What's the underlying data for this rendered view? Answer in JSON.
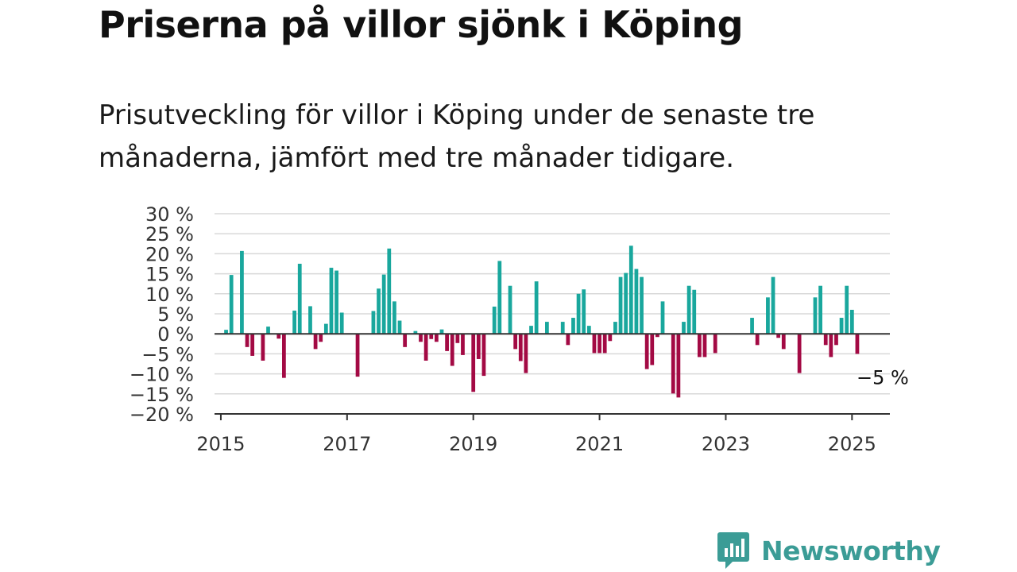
{
  "title": "Priserna på villor sjönk i Köping",
  "subtitle": "Prisutveckling för villor i Köping under de senaste tre månaderna, jämfört med tre månader tidigare.",
  "brand": {
    "name": "Newsworthy",
    "color": "#3b9c96"
  },
  "colors": {
    "positive": "#19a79d",
    "negative": "#a30a44",
    "grid": "#d8d8d8",
    "axis": "#333333"
  },
  "chart_data": {
    "type": "bar",
    "title": "Priserna på villor sjönk i Köping",
    "xlabel": "",
    "ylabel": "",
    "ylim": [
      -20,
      30
    ],
    "xlim": [
      2014.9,
      2025.6
    ],
    "x_ticks": [
      2015,
      2017,
      2019,
      2021,
      2023,
      2025
    ],
    "x_tick_labels": [
      "2015",
      "2017",
      "2019",
      "2021",
      "2023",
      "2025"
    ],
    "y_ticks": [
      30,
      25,
      20,
      15,
      10,
      5,
      0,
      -5,
      -10,
      -15,
      -20
    ],
    "y_tick_labels": [
      "30 %",
      "25 %",
      "20 %",
      "15 %",
      "10 %",
      "5 %",
      "0 %",
      "−5 %",
      "−10 %",
      "−15 %",
      "−20 %"
    ],
    "grid": true,
    "annotation": {
      "text": "−5 %",
      "x": 2025.0833,
      "y": -5
    },
    "points": [
      {
        "x": 2015.0833,
        "y": 1
      },
      {
        "x": 2015.1667,
        "y": 14.7
      },
      {
        "x": 2015.25,
        "y": 0
      },
      {
        "x": 2015.3333,
        "y": 20.7
      },
      {
        "x": 2015.4167,
        "y": -3.3
      },
      {
        "x": 2015.5,
        "y": -5.5
      },
      {
        "x": 2015.5833,
        "y": 0
      },
      {
        "x": 2015.6667,
        "y": -6.7
      },
      {
        "x": 2015.75,
        "y": 1.8
      },
      {
        "x": 2015.8333,
        "y": 0
      },
      {
        "x": 2015.9167,
        "y": -1.2
      },
      {
        "x": 2016.0,
        "y": -11
      },
      {
        "x": 2016.0833,
        "y": 0
      },
      {
        "x": 2016.1667,
        "y": 5.8
      },
      {
        "x": 2016.25,
        "y": 17.5
      },
      {
        "x": 2016.3333,
        "y": 0
      },
      {
        "x": 2016.4167,
        "y": 6.9
      },
      {
        "x": 2016.5,
        "y": -3.8
      },
      {
        "x": 2016.5833,
        "y": -2
      },
      {
        "x": 2016.6667,
        "y": 2.5
      },
      {
        "x": 2016.75,
        "y": 16.5
      },
      {
        "x": 2016.8333,
        "y": 15.8
      },
      {
        "x": 2016.9167,
        "y": 5.3
      },
      {
        "x": 2017.0,
        "y": 0
      },
      {
        "x": 2017.0833,
        "y": 0
      },
      {
        "x": 2017.1667,
        "y": -10.7
      },
      {
        "x": 2017.25,
        "y": 0
      },
      {
        "x": 2017.3333,
        "y": 0
      },
      {
        "x": 2017.4167,
        "y": 5.7
      },
      {
        "x": 2017.5,
        "y": 11.3
      },
      {
        "x": 2017.5833,
        "y": 14.8
      },
      {
        "x": 2017.6667,
        "y": 21.3
      },
      {
        "x": 2017.75,
        "y": 8.1
      },
      {
        "x": 2017.8333,
        "y": 3.3
      },
      {
        "x": 2017.9167,
        "y": -3.3
      },
      {
        "x": 2018.0,
        "y": 0
      },
      {
        "x": 2018.0833,
        "y": 0.7
      },
      {
        "x": 2018.1667,
        "y": -2
      },
      {
        "x": 2018.25,
        "y": -6.7
      },
      {
        "x": 2018.3333,
        "y": -1.3
      },
      {
        "x": 2018.4167,
        "y": -2
      },
      {
        "x": 2018.5,
        "y": 1.1
      },
      {
        "x": 2018.5833,
        "y": -4.3
      },
      {
        "x": 2018.6667,
        "y": -8
      },
      {
        "x": 2018.75,
        "y": -2.3
      },
      {
        "x": 2018.8333,
        "y": -5.3
      },
      {
        "x": 2018.9167,
        "y": 0
      },
      {
        "x": 2019.0,
        "y": -14.5
      },
      {
        "x": 2019.0833,
        "y": -6.3
      },
      {
        "x": 2019.1667,
        "y": -10.5
      },
      {
        "x": 2019.25,
        "y": 0
      },
      {
        "x": 2019.3333,
        "y": 6.8
      },
      {
        "x": 2019.4167,
        "y": 18.2
      },
      {
        "x": 2019.5,
        "y": 0
      },
      {
        "x": 2019.5833,
        "y": 12
      },
      {
        "x": 2019.6667,
        "y": -3.8
      },
      {
        "x": 2019.75,
        "y": -6.8
      },
      {
        "x": 2019.8333,
        "y": -9.8
      },
      {
        "x": 2019.9167,
        "y": 2
      },
      {
        "x": 2020.0,
        "y": 13.1
      },
      {
        "x": 2020.0833,
        "y": 0
      },
      {
        "x": 2020.1667,
        "y": 3
      },
      {
        "x": 2020.25,
        "y": 0
      },
      {
        "x": 2020.3333,
        "y": 0
      },
      {
        "x": 2020.4167,
        "y": 3
      },
      {
        "x": 2020.5,
        "y": -2.8
      },
      {
        "x": 2020.5833,
        "y": 4
      },
      {
        "x": 2020.6667,
        "y": 10
      },
      {
        "x": 2020.75,
        "y": 11.1
      },
      {
        "x": 2020.8333,
        "y": 2
      },
      {
        "x": 2020.9167,
        "y": -4.8
      },
      {
        "x": 2021.0,
        "y": -4.8
      },
      {
        "x": 2021.0833,
        "y": -4.8
      },
      {
        "x": 2021.1667,
        "y": -1.8
      },
      {
        "x": 2021.25,
        "y": 3
      },
      {
        "x": 2021.3333,
        "y": 14.2
      },
      {
        "x": 2021.4167,
        "y": 15.2
      },
      {
        "x": 2021.5,
        "y": 22
      },
      {
        "x": 2021.5833,
        "y": 16.2
      },
      {
        "x": 2021.6667,
        "y": 14.2
      },
      {
        "x": 2021.75,
        "y": -8.8
      },
      {
        "x": 2021.8333,
        "y": -7.8
      },
      {
        "x": 2021.9167,
        "y": -0.8
      },
      {
        "x": 2022.0,
        "y": 8.1
      },
      {
        "x": 2022.0833,
        "y": 0
      },
      {
        "x": 2022.1667,
        "y": -14.9
      },
      {
        "x": 2022.25,
        "y": -15.9
      },
      {
        "x": 2022.3333,
        "y": 3
      },
      {
        "x": 2022.4167,
        "y": 12
      },
      {
        "x": 2022.5,
        "y": 11
      },
      {
        "x": 2022.5833,
        "y": -5.8
      },
      {
        "x": 2022.6667,
        "y": -5.8
      },
      {
        "x": 2022.75,
        "y": 0
      },
      {
        "x": 2022.8333,
        "y": -4.8
      },
      {
        "x": 2022.9167,
        "y": 0
      },
      {
        "x": 2023.0,
        "y": 0
      },
      {
        "x": 2023.0833,
        "y": 0
      },
      {
        "x": 2023.1667,
        "y": 0
      },
      {
        "x": 2023.25,
        "y": 0
      },
      {
        "x": 2023.3333,
        "y": 0
      },
      {
        "x": 2023.4167,
        "y": 4
      },
      {
        "x": 2023.5,
        "y": -2.8
      },
      {
        "x": 2023.5833,
        "y": 0
      },
      {
        "x": 2023.6667,
        "y": 9.1
      },
      {
        "x": 2023.75,
        "y": 14.2
      },
      {
        "x": 2023.8333,
        "y": -1
      },
      {
        "x": 2023.9167,
        "y": -3.8
      },
      {
        "x": 2024.0,
        "y": 0
      },
      {
        "x": 2024.0833,
        "y": 0
      },
      {
        "x": 2024.1667,
        "y": -9.8
      },
      {
        "x": 2024.25,
        "y": 0
      },
      {
        "x": 2024.3333,
        "y": 0
      },
      {
        "x": 2024.4167,
        "y": 9.1
      },
      {
        "x": 2024.5,
        "y": 12
      },
      {
        "x": 2024.5833,
        "y": -2.8
      },
      {
        "x": 2024.6667,
        "y": -5.8
      },
      {
        "x": 2024.75,
        "y": -2.8
      },
      {
        "x": 2024.8333,
        "y": 4
      },
      {
        "x": 2024.9167,
        "y": 12
      },
      {
        "x": 2025.0,
        "y": 6
      },
      {
        "x": 2025.0833,
        "y": -5
      }
    ]
  }
}
